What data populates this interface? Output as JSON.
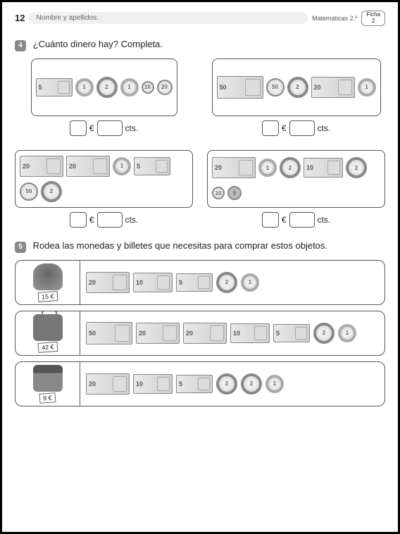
{
  "header": {
    "page_number": "12",
    "name_label": "Nombre y apellidos:",
    "subject": "Matemáticas 2.º",
    "ficha_label": "Ficha",
    "ficha_num": "2"
  },
  "exercise4": {
    "badge": "4",
    "title": "¿Cuánto dinero hay? Completa.",
    "euro_symbol": "€",
    "cts_label": "cts.",
    "boxes": [
      {
        "items": [
          {
            "type": "bill",
            "value": "5",
            "class": "b5"
          },
          {
            "type": "coin",
            "value": "1",
            "class": "c1e"
          },
          {
            "type": "coin",
            "value": "2",
            "class": "c2e"
          },
          {
            "type": "coin",
            "value": "1",
            "class": "c1e"
          },
          {
            "type": "coin",
            "value": "10",
            "class": "c10"
          },
          {
            "type": "coin",
            "value": "20",
            "class": "c20"
          }
        ]
      },
      {
        "items": [
          {
            "type": "bill",
            "value": "50",
            "class": "b50"
          },
          {
            "type": "coin",
            "value": "50",
            "class": "c50"
          },
          {
            "type": "coin",
            "value": "2",
            "class": "c2e"
          },
          {
            "type": "bill",
            "value": "20",
            "class": "b20"
          },
          {
            "type": "coin",
            "value": "1",
            "class": "c1e"
          }
        ]
      },
      {
        "items": [
          {
            "type": "bill",
            "value": "20",
            "class": "b20"
          },
          {
            "type": "bill",
            "value": "20",
            "class": "b20"
          },
          {
            "type": "coin",
            "value": "1",
            "class": "c1e"
          },
          {
            "type": "bill",
            "value": "5",
            "class": "b5"
          },
          {
            "type": "coin",
            "value": "50",
            "class": "c50"
          },
          {
            "type": "coin",
            "value": "2",
            "class": "c2e"
          }
        ]
      },
      {
        "items": [
          {
            "type": "bill",
            "value": "20",
            "class": "b20"
          },
          {
            "type": "coin",
            "value": "1",
            "class": "c1e"
          },
          {
            "type": "coin",
            "value": "2",
            "class": "c2e"
          },
          {
            "type": "bill",
            "value": "10",
            "class": "b10"
          },
          {
            "type": "coin",
            "value": "2",
            "class": "c2e"
          },
          {
            "type": "coin",
            "value": "10",
            "class": "c10"
          },
          {
            "type": "coin",
            "value": "5",
            "class": "c5"
          }
        ]
      }
    ]
  },
  "exercise5": {
    "badge": "5",
    "title": "Rodea las monedas y billetes que necesitas para comprar estos objetos.",
    "rows": [
      {
        "object": "backpack",
        "price": "15 €",
        "items": [
          {
            "type": "bill",
            "value": "20",
            "class": "b20"
          },
          {
            "type": "bill",
            "value": "10",
            "class": "b10"
          },
          {
            "type": "bill",
            "value": "5",
            "class": "b5"
          },
          {
            "type": "coin",
            "value": "2",
            "class": "c2e"
          },
          {
            "type": "coin",
            "value": "1",
            "class": "c1e"
          }
        ]
      },
      {
        "object": "suitcase",
        "price": "42 €",
        "items": [
          {
            "type": "bill",
            "value": "50",
            "class": "b50"
          },
          {
            "type": "bill",
            "value": "20",
            "class": "b20"
          },
          {
            "type": "bill",
            "value": "20",
            "class": "b20"
          },
          {
            "type": "bill",
            "value": "10",
            "class": "b10"
          },
          {
            "type": "bill",
            "value": "5",
            "class": "b5"
          },
          {
            "type": "coin",
            "value": "2",
            "class": "c2e"
          },
          {
            "type": "coin",
            "value": "1",
            "class": "c1e"
          }
        ]
      },
      {
        "object": "calc",
        "price": "9 €",
        "items": [
          {
            "type": "bill",
            "value": "20",
            "class": "b20"
          },
          {
            "type": "bill",
            "value": "10",
            "class": "b10"
          },
          {
            "type": "bill",
            "value": "5",
            "class": "b5"
          },
          {
            "type": "coin",
            "value": "2",
            "class": "c2e"
          },
          {
            "type": "coin",
            "value": "2",
            "class": "c2e"
          },
          {
            "type": "coin",
            "value": "1",
            "class": "c1e"
          }
        ]
      }
    ]
  }
}
